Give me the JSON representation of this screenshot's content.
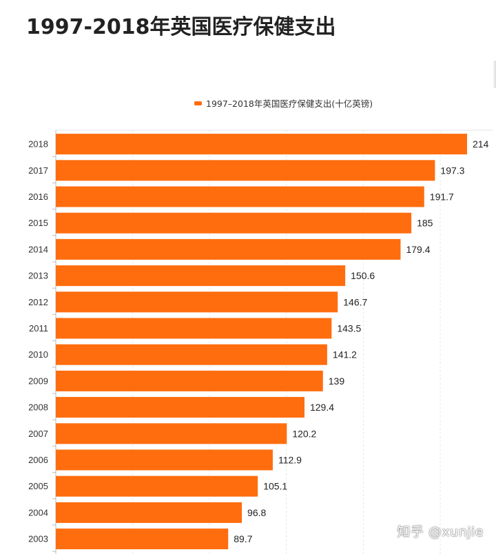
{
  "chart_data": {
    "type": "bar",
    "orientation": "horizontal",
    "title": "1997-2018年英国医疗保健支出",
    "legend": "1997–2018年英国医疗保健支出(十亿英镑)",
    "categories": [
      "2018",
      "2017",
      "2016",
      "2015",
      "2014",
      "2013",
      "2012",
      "2011",
      "2010",
      "2009",
      "2008",
      "2007",
      "2006",
      "2005",
      "2004",
      "2003"
    ],
    "values": [
      214,
      197.3,
      191.7,
      185,
      179.4,
      150.6,
      146.7,
      143.5,
      141.2,
      139,
      129.4,
      120.2,
      112.9,
      105.1,
      96.8,
      89.7
    ],
    "value_labels": [
      "214",
      "197.3",
      "191.7",
      "185",
      "179.4",
      "150.6",
      "146.7",
      "143.5",
      "141.2",
      "139",
      "129.4",
      "120.2",
      "112.9",
      "105.1",
      "96.8",
      "89.7"
    ],
    "xlim": [
      0,
      250
    ],
    "grid": true,
    "legend_position": "top-center",
    "bar_color": "#ff6d0f"
  },
  "watermark": "知乎 @xunjie"
}
